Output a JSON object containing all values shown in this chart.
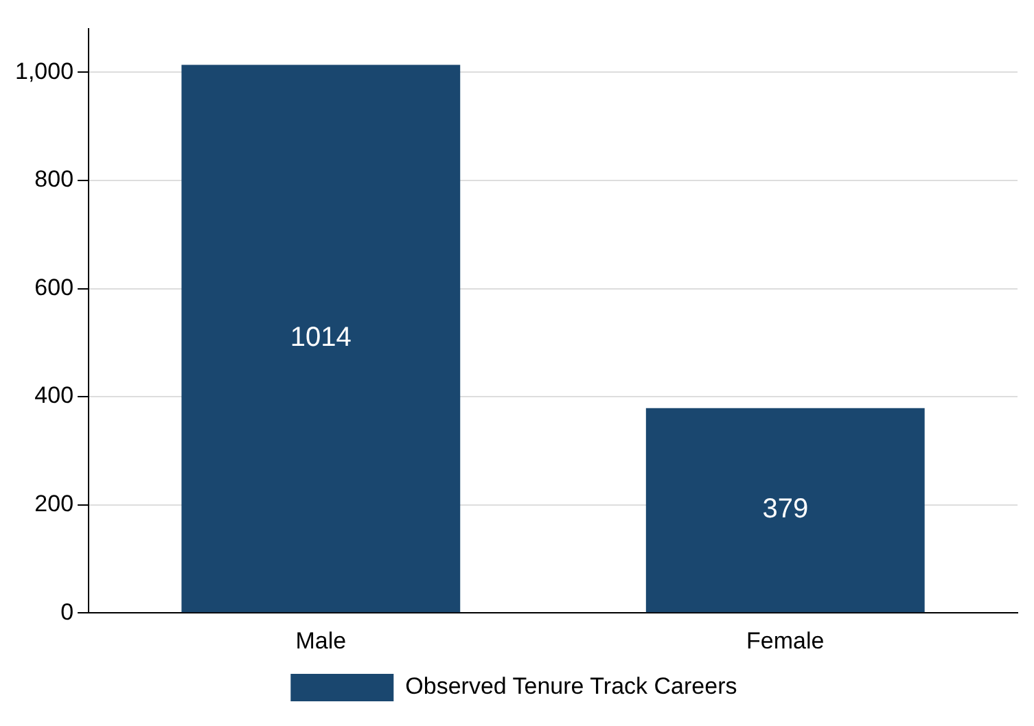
{
  "chart_data": {
    "type": "bar",
    "categories": [
      "Male",
      "Female"
    ],
    "series": [
      {
        "name": "Observed Tenure Track Careers",
        "color": "#1a476f",
        "values": [
          1014,
          379
        ]
      }
    ],
    "ylim": [
      0,
      1080
    ],
    "yticks": [
      0,
      200,
      400,
      600,
      800,
      {
        "value": 1000,
        "label": "1,000"
      }
    ],
    "grid": "y",
    "legend": "bottom",
    "data_labels": true
  }
}
